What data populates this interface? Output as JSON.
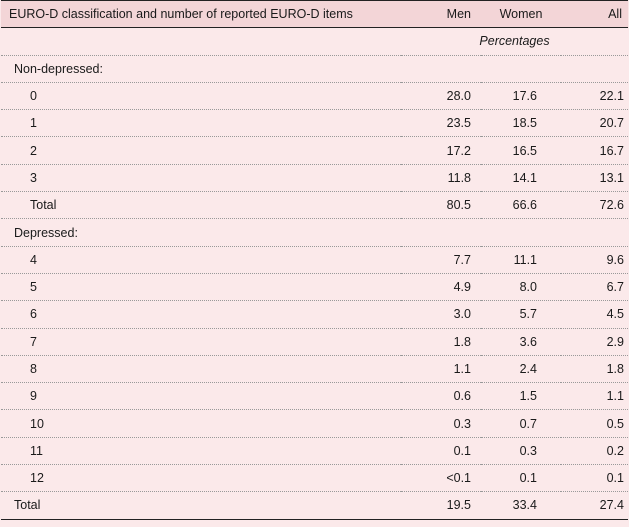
{
  "header": {
    "label": "EURO-D classification and number of reported EURO-D items",
    "men": "Men",
    "women": "Women",
    "all": "All"
  },
  "unit": "Percentages",
  "sections": [
    {
      "title": "Non-depressed:",
      "rows": [
        {
          "label": "0",
          "men": "28.0",
          "women": "17.6",
          "all": "22.1"
        },
        {
          "label": "1",
          "men": "23.5",
          "women": "18.5",
          "all": "20.7"
        },
        {
          "label": "2",
          "men": "17.2",
          "women": "16.5",
          "all": "16.7"
        },
        {
          "label": "3",
          "men": "11.8",
          "women": "14.1",
          "all": "13.1"
        },
        {
          "label": "Total",
          "men": "80.5",
          "women": "66.6",
          "all": "72.6"
        }
      ]
    },
    {
      "title": "Depressed:",
      "rows": [
        {
          "label": "4",
          "men": "7.7",
          "women": "11.1",
          "all": "9.6"
        },
        {
          "label": "5",
          "men": "4.9",
          "women": "8.0",
          "all": "6.7"
        },
        {
          "label": "6",
          "men": "3.0",
          "women": "5.7",
          "all": "4.5"
        },
        {
          "label": "7",
          "men": "1.8",
          "women": "3.6",
          "all": "2.9"
        },
        {
          "label": "8",
          "men": "1.1",
          "women": "2.4",
          "all": "1.8"
        },
        {
          "label": "9",
          "men": "0.6",
          "women": "1.5",
          "all": "1.1"
        },
        {
          "label": "10",
          "men": "0.3",
          "women": "0.7",
          "all": "0.5"
        },
        {
          "label": "11",
          "men": "0.1",
          "women": "0.3",
          "all": "0.2"
        },
        {
          "label": "12",
          "men": "<0.1",
          "women": "0.1",
          "all": "0.1"
        }
      ]
    }
  ],
  "total": {
    "label": "Total",
    "men": "19.5",
    "women": "33.4",
    "all": "27.4"
  }
}
